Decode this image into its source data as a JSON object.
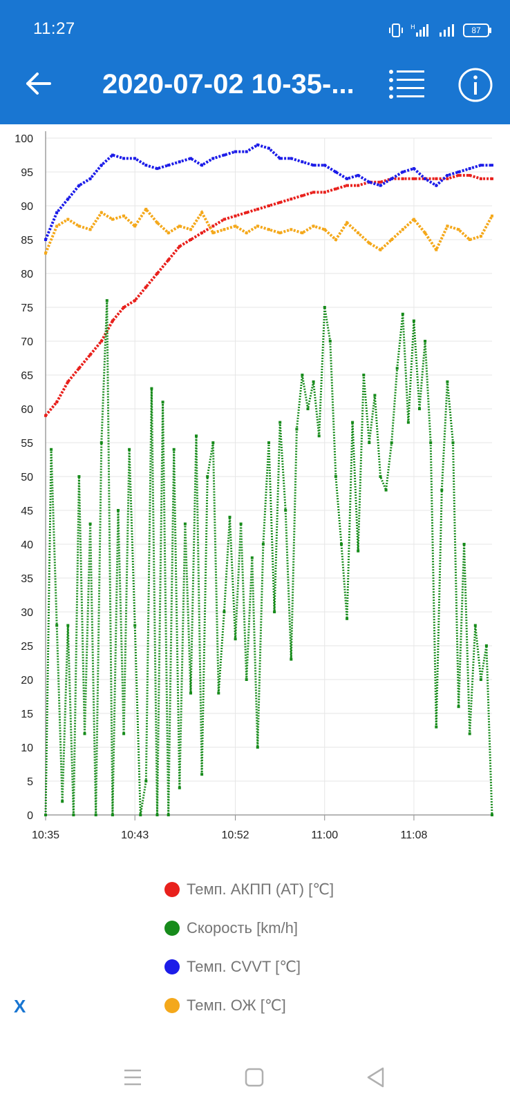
{
  "status_bar": {
    "time": "11:27",
    "battery": "87"
  },
  "app_bar": {
    "title": "2020-07-02 10-35-...",
    "back_icon": "arrow-left-icon",
    "list_icon": "list-icon",
    "info_icon": "info-icon",
    "color": "#1976d2"
  },
  "chart_data": {
    "type": "scatter",
    "x_ticks": [
      "10:35",
      "10:43",
      "10:52",
      "11:00",
      "11:08"
    ],
    "y_ticks": [
      0,
      5,
      10,
      15,
      20,
      25,
      30,
      35,
      40,
      45,
      50,
      55,
      60,
      65,
      70,
      75,
      80,
      85,
      90,
      95,
      100
    ],
    "ylim": [
      0,
      100
    ],
    "xlim": [
      "10:35",
      "11:15"
    ],
    "grid": true,
    "legend_position": "bottom",
    "series": [
      {
        "name": "Темп. АКПП (AT) [℃]",
        "color": "#e8201c",
        "points": [
          [
            "10:35",
            59
          ],
          [
            "10:36",
            61
          ],
          [
            "10:37",
            64
          ],
          [
            "10:38",
            66
          ],
          [
            "10:39",
            68
          ],
          [
            "10:40",
            70
          ],
          [
            "10:41",
            73
          ],
          [
            "10:42",
            75
          ],
          [
            "10:43",
            76
          ],
          [
            "10:44",
            78
          ],
          [
            "10:45",
            80
          ],
          [
            "10:46",
            82
          ],
          [
            "10:47",
            84
          ],
          [
            "10:48",
            85
          ],
          [
            "10:49",
            86
          ],
          [
            "10:50",
            87
          ],
          [
            "10:51",
            88
          ],
          [
            "10:52",
            88.5
          ],
          [
            "10:53",
            89
          ],
          [
            "10:54",
            89.5
          ],
          [
            "10:55",
            90
          ],
          [
            "10:56",
            90.5
          ],
          [
            "10:57",
            91
          ],
          [
            "10:58",
            91.5
          ],
          [
            "10:59",
            92
          ],
          [
            "11:00",
            92
          ],
          [
            "11:01",
            92.5
          ],
          [
            "11:02",
            93
          ],
          [
            "11:03",
            93
          ],
          [
            "11:04",
            93.5
          ],
          [
            "11:05",
            93.5
          ],
          [
            "11:06",
            94
          ],
          [
            "11:07",
            94
          ],
          [
            "11:08",
            94
          ],
          [
            "11:09",
            94
          ],
          [
            "11:10",
            94
          ],
          [
            "11:11",
            94
          ],
          [
            "11:12",
            94.5
          ],
          [
            "11:13",
            94.5
          ],
          [
            "11:14",
            94
          ],
          [
            "11:15",
            94
          ]
        ]
      },
      {
        "name": "Скорость [km/h]",
        "color": "#178b1b",
        "points": [
          [
            "10:35",
            0
          ],
          [
            "10:35.5",
            54
          ],
          [
            "10:36",
            28
          ],
          [
            "10:36.5",
            2
          ],
          [
            "10:37",
            28
          ],
          [
            "10:37.5",
            0
          ],
          [
            "10:38",
            50
          ],
          [
            "10:38.5",
            12
          ],
          [
            "10:39",
            43
          ],
          [
            "10:39.5",
            0
          ],
          [
            "10:40",
            55
          ],
          [
            "10:40.5",
            76
          ],
          [
            "10:41",
            0
          ],
          [
            "10:41.5",
            45
          ],
          [
            "10:42",
            12
          ],
          [
            "10:42.5",
            54
          ],
          [
            "10:43",
            28
          ],
          [
            "10:43.5",
            0
          ],
          [
            "10:44",
            5
          ],
          [
            "10:44.5",
            63
          ],
          [
            "10:45",
            0
          ],
          [
            "10:45.5",
            61
          ],
          [
            "10:46",
            0
          ],
          [
            "10:46.5",
            54
          ],
          [
            "10:47",
            4
          ],
          [
            "10:47.5",
            43
          ],
          [
            "10:48",
            18
          ],
          [
            "10:48.5",
            56
          ],
          [
            "10:49",
            6
          ],
          [
            "10:49.5",
            50
          ],
          [
            "10:50",
            55
          ],
          [
            "10:50.5",
            18
          ],
          [
            "10:51",
            30
          ],
          [
            "10:51.5",
            44
          ],
          [
            "10:52",
            26
          ],
          [
            "10:52.5",
            43
          ],
          [
            "10:53",
            20
          ],
          [
            "10:53.5",
            38
          ],
          [
            "10:54",
            10
          ],
          [
            "10:54.5",
            40
          ],
          [
            "10:55",
            55
          ],
          [
            "10:55.5",
            30
          ],
          [
            "10:56",
            58
          ],
          [
            "10:56.5",
            45
          ],
          [
            "10:57",
            23
          ],
          [
            "10:57.5",
            57
          ],
          [
            "10:58",
            65
          ],
          [
            "10:58.5",
            60
          ],
          [
            "10:59",
            64
          ],
          [
            "10:59.5",
            56
          ],
          [
            "11:00",
            75
          ],
          [
            "11:00.5",
            70
          ],
          [
            "11:01",
            50
          ],
          [
            "11:01.5",
            40
          ],
          [
            "11:02",
            29
          ],
          [
            "11:02.5",
            58
          ],
          [
            "11:03",
            39
          ],
          [
            "11:03.5",
            65
          ],
          [
            "11:04",
            55
          ],
          [
            "11:04.5",
            62
          ],
          [
            "11:05",
            50
          ],
          [
            "11:05.5",
            48
          ],
          [
            "11:06",
            55
          ],
          [
            "11:06.5",
            66
          ],
          [
            "11:07",
            74
          ],
          [
            "11:07.5",
            58
          ],
          [
            "11:08",
            73
          ],
          [
            "11:08.5",
            60
          ],
          [
            "11:09",
            70
          ],
          [
            "11:09.5",
            55
          ],
          [
            "11:10",
            13
          ],
          [
            "11:10.5",
            48
          ],
          [
            "11:11",
            64
          ],
          [
            "11:11.5",
            55
          ],
          [
            "11:12",
            16
          ],
          [
            "11:12.5",
            40
          ],
          [
            "11:13",
            12
          ],
          [
            "11:13.5",
            28
          ],
          [
            "11:14",
            20
          ],
          [
            "11:14.5",
            25
          ],
          [
            "11:15",
            0
          ]
        ]
      },
      {
        "name": "Темп. CVVT [℃]",
        "color": "#1c1ce8",
        "points": [
          [
            "10:35",
            85
          ],
          [
            "10:36",
            89
          ],
          [
            "10:37",
            91
          ],
          [
            "10:38",
            93
          ],
          [
            "10:39",
            94
          ],
          [
            "10:40",
            96
          ],
          [
            "10:41",
            97.5
          ],
          [
            "10:42",
            97
          ],
          [
            "10:43",
            97
          ],
          [
            "10:44",
            96
          ],
          [
            "10:45",
            95.5
          ],
          [
            "10:46",
            96
          ],
          [
            "10:47",
            96.5
          ],
          [
            "10:48",
            97
          ],
          [
            "10:49",
            96
          ],
          [
            "10:50",
            97
          ],
          [
            "10:51",
            97.5
          ],
          [
            "10:52",
            98
          ],
          [
            "10:53",
            98
          ],
          [
            "10:54",
            99
          ],
          [
            "10:55",
            98.5
          ],
          [
            "10:56",
            97
          ],
          [
            "10:57",
            97
          ],
          [
            "10:58",
            96.5
          ],
          [
            "10:59",
            96
          ],
          [
            "11:00",
            96
          ],
          [
            "11:01",
            95
          ],
          [
            "11:02",
            94
          ],
          [
            "11:03",
            94.5
          ],
          [
            "11:04",
            93.5
          ],
          [
            "11:05",
            93
          ],
          [
            "11:06",
            94
          ],
          [
            "11:07",
            95
          ],
          [
            "11:08",
            95.5
          ],
          [
            "11:09",
            94
          ],
          [
            "11:10",
            93
          ],
          [
            "11:11",
            94.5
          ],
          [
            "11:12",
            95
          ],
          [
            "11:13",
            95.5
          ],
          [
            "11:14",
            96
          ],
          [
            "11:15",
            96
          ]
        ]
      },
      {
        "name": "Темп. ОЖ [℃]",
        "color": "#f4a81b",
        "points": [
          [
            "10:35",
            83
          ],
          [
            "10:36",
            87
          ],
          [
            "10:37",
            88
          ],
          [
            "10:38",
            87
          ],
          [
            "10:39",
            86.5
          ],
          [
            "10:40",
            89
          ],
          [
            "10:41",
            88
          ],
          [
            "10:42",
            88.5
          ],
          [
            "10:43",
            87
          ],
          [
            "10:44",
            89.5
          ],
          [
            "10:45",
            87.5
          ],
          [
            "10:46",
            86
          ],
          [
            "10:47",
            87
          ],
          [
            "10:48",
            86.5
          ],
          [
            "10:49",
            89
          ],
          [
            "10:50",
            86
          ],
          [
            "10:51",
            86.5
          ],
          [
            "10:52",
            87
          ],
          [
            "10:53",
            86
          ],
          [
            "10:54",
            87
          ],
          [
            "10:55",
            86.5
          ],
          [
            "10:56",
            86
          ],
          [
            "10:57",
            86.5
          ],
          [
            "10:58",
            86
          ],
          [
            "10:59",
            87
          ],
          [
            "11:00",
            86.5
          ],
          [
            "11:01",
            85
          ],
          [
            "11:02",
            87.5
          ],
          [
            "11:03",
            86
          ],
          [
            "11:04",
            84.5
          ],
          [
            "11:05",
            83.5
          ],
          [
            "11:06",
            85
          ],
          [
            "11:07",
            86.5
          ],
          [
            "11:08",
            88
          ],
          [
            "11:09",
            86
          ],
          [
            "11:10",
            83.5
          ],
          [
            "11:11",
            87
          ],
          [
            "11:12",
            86.5
          ],
          [
            "11:13",
            85
          ],
          [
            "11:14",
            85.5
          ],
          [
            "11:15",
            88.5
          ]
        ]
      }
    ]
  },
  "close_label": "X",
  "nav": {
    "menu_icon": "menu-icon",
    "home_icon": "square-icon",
    "back_icon": "triangle-back-icon"
  }
}
